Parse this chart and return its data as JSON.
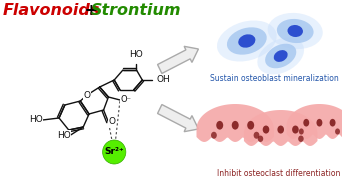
{
  "title_flavonoids": "Flavonoids",
  "title_plus": " + ",
  "title_strontium": "Strontium",
  "flavonoids_color": "#cc0000",
  "strontium_color": "#228B00",
  "plus_color": "#000000",
  "osteoblast_label": "Sustain osteoblast mineralization",
  "osteoclast_label": "Inhibit osteoclast differentiation",
  "osteoblast_label_color": "#2255aa",
  "osteoclast_label_color": "#8B2222",
  "cell_body_blue": "#aac4e8",
  "cell_halo_blue": "#c8daf5",
  "cell_nucleus_blue": "#2255bb",
  "cell_body_pink": "#f5aaaa",
  "cell_nucleus_pink": "#7a1515",
  "sr_ball_color": "#55ee00",
  "sr_text_color": "#000000",
  "arrow_fill": "#e8e8e8",
  "arrow_edge": "#bbbbbb",
  "bg_color": "#ffffff",
  "bond_color": "#111111"
}
